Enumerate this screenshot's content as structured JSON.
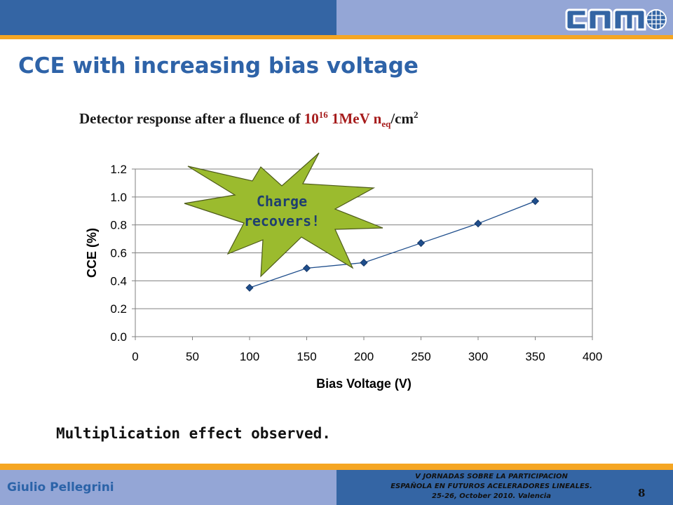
{
  "slide": {
    "title": "CCE with increasing bias voltage",
    "subtitle_prefix": "Detector response after a fluence of ",
    "subtitle_base": "10",
    "subtitle_exp": "16",
    "subtitle_unit": " 1MeV n",
    "subtitle_sub": "eq",
    "subtitle_tail": "/cm",
    "subtitle_tail_exp": "2",
    "note": "Multiplication effect observed.",
    "author": "Giulio Pellegrini",
    "conference": {
      "line1": "V JORNADAS SOBRE LA PARTICIPACION",
      "line2": "ESPAÑOLA EN FUTUROS ACELERADORES LINEALES.",
      "line3": "25-26, October 2010. Valencia"
    },
    "page_number": "8",
    "logo_icon": "cnm-logo-icon"
  },
  "colors": {
    "accent_blue": "#3465a4",
    "light_blue": "#94a6d6",
    "orange": "#f5a623",
    "title_blue": "#2e63a8",
    "red": "#a61c1c",
    "burst_green": "#9bbb2e",
    "series_blue": "#1f4e8c"
  },
  "chart_data": {
    "type": "scatter",
    "x": [
      100,
      150,
      200,
      250,
      300,
      350
    ],
    "series": [
      {
        "values": [
          0.35,
          0.49,
          0.53,
          0.67,
          0.81,
          0.97
        ]
      }
    ],
    "xlabel": "Bias Voltage (V)",
    "ylabel": "CCE (%)",
    "xlim": [
      0,
      400
    ],
    "ylim": [
      0,
      1.2
    ],
    "xticks": [
      "0",
      "50",
      "100",
      "150",
      "200",
      "250",
      "300",
      "350",
      "400"
    ],
    "yticks": [
      "0.0",
      "0.2",
      "0.4",
      "0.6",
      "0.8",
      "1.0",
      "1.2"
    ],
    "grid": "horizontal",
    "annotation": {
      "line1": "Charge",
      "line2": "recovers!"
    }
  }
}
